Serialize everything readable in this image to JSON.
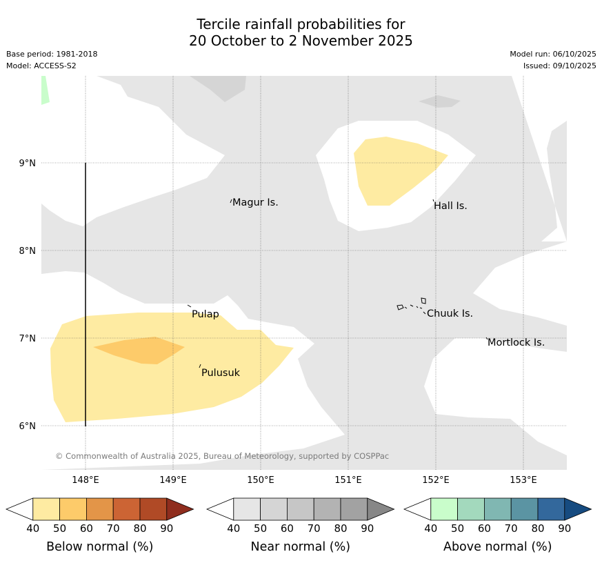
{
  "title": {
    "line1": "Tercile rainfall probabilities for",
    "line2": "20 October to 2 November 2025"
  },
  "meta": {
    "base_period": "Base period: 1981-2018",
    "model": "Model: ACCESS-S2",
    "model_run": "Model run: 06/10/2025",
    "issued": "Issued: 09/10/2025"
  },
  "map": {
    "lon_labels": [
      "148°E",
      "149°E",
      "150°E",
      "151°E",
      "152°E",
      "153°E"
    ],
    "lat_labels": [
      "9°N",
      "8°N",
      "7°N",
      "6°N"
    ],
    "places": [
      {
        "name": "Magur Is."
      },
      {
        "name": "Hall Is."
      },
      {
        "name": "Pulap"
      },
      {
        "name": "Chuuk Is."
      },
      {
        "name": "Mortlock Is."
      },
      {
        "name": "Pulusuk"
      }
    ],
    "copyright": "© Commonwealth of Australia 2025, Bureau of Meteorology, supported by COSPPac",
    "colors": {
      "near_40": "#e6e6e6",
      "near_50": "#d5d5d5",
      "below_40": "#feeba2",
      "below_50": "#fdcb6a",
      "above_40": "#c9fdcb"
    }
  },
  "legends": [
    {
      "label": "Below normal (%)",
      "ticks": [
        "40",
        "50",
        "60",
        "70",
        "80",
        "90"
      ],
      "colors": [
        "#feeba2",
        "#fdcb6a",
        "#e39548",
        "#cc6434",
        "#b04a26",
        "#8f2d1e"
      ]
    },
    {
      "label": "Near normal (%)",
      "ticks": [
        "40",
        "50",
        "60",
        "70",
        "80",
        "90"
      ],
      "colors": [
        "#e6e6e6",
        "#d5d5d5",
        "#c6c6c6",
        "#b3b3b3",
        "#a2a2a2",
        "#878787"
      ]
    },
    {
      "label": "Above normal (%)",
      "ticks": [
        "40",
        "50",
        "60",
        "70",
        "80",
        "90"
      ],
      "colors": [
        "#c9fdcb",
        "#a3d9bd",
        "#80b7b2",
        "#5b94a3",
        "#33689c",
        "#164b80"
      ]
    }
  ]
}
